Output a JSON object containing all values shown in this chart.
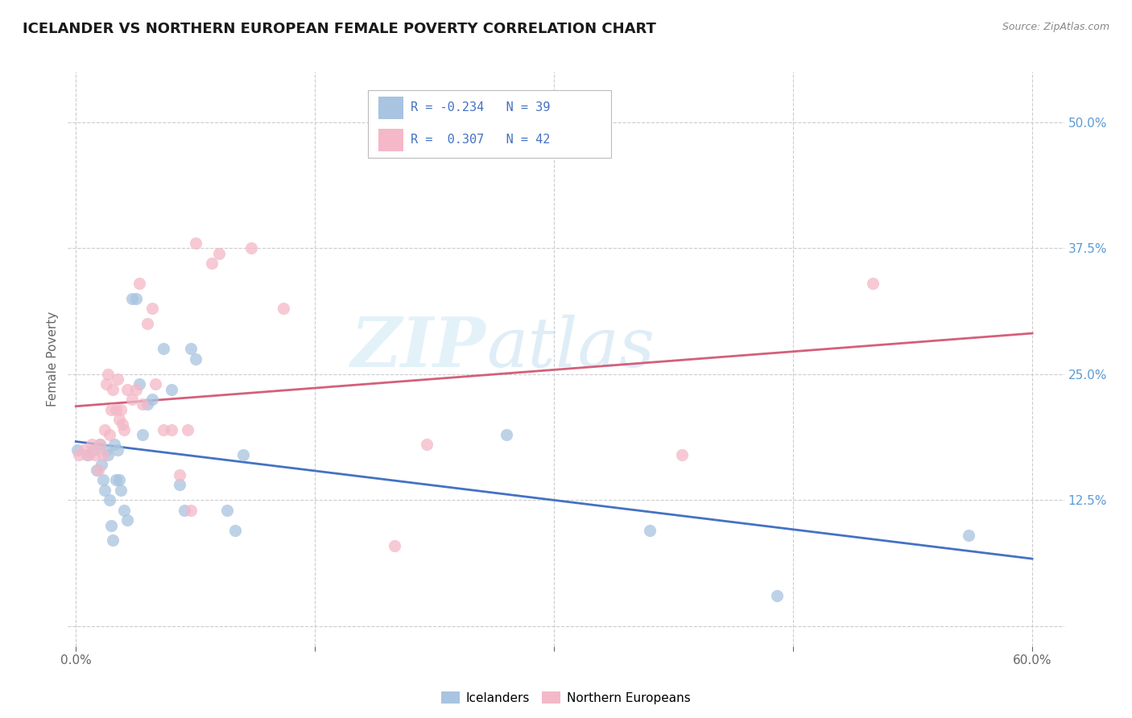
{
  "title": "ICELANDER VS NORTHERN EUROPEAN FEMALE POVERTY CORRELATION CHART",
  "source": "Source: ZipAtlas.com",
  "ylabel": "Female Poverty",
  "icelanders_color": "#a8c4e0",
  "northern_europeans_color": "#f4b8c8",
  "line_blue": "#4472c4",
  "line_pink": "#d4607a",
  "watermark_zip": "ZIP",
  "watermark_atlas": "atlas",
  "icelanders_x": [
    0.1,
    0.7,
    1.1,
    1.3,
    1.5,
    1.6,
    1.7,
    1.8,
    1.9,
    2.0,
    2.1,
    2.2,
    2.3,
    2.4,
    2.5,
    2.6,
    2.7,
    2.8,
    3.0,
    3.2,
    3.5,
    3.8,
    4.0,
    4.2,
    4.5,
    4.8,
    5.5,
    6.0,
    6.5,
    6.8,
    7.2,
    7.5,
    9.5,
    10.0,
    10.5,
    27.0,
    36.0,
    44.0,
    56.0
  ],
  "icelanders_y": [
    17.5,
    17.0,
    17.5,
    15.5,
    18.0,
    16.0,
    14.5,
    13.5,
    17.5,
    17.0,
    12.5,
    10.0,
    8.5,
    18.0,
    14.5,
    17.5,
    14.5,
    13.5,
    11.5,
    10.5,
    32.5,
    32.5,
    24.0,
    19.0,
    22.0,
    22.5,
    27.5,
    23.5,
    14.0,
    11.5,
    27.5,
    26.5,
    11.5,
    9.5,
    17.0,
    19.0,
    9.5,
    3.0,
    9.0
  ],
  "northern_europeans_x": [
    0.2,
    0.5,
    0.8,
    1.0,
    1.2,
    1.4,
    1.5,
    1.7,
    1.8,
    1.9,
    2.0,
    2.1,
    2.2,
    2.3,
    2.5,
    2.6,
    2.7,
    2.8,
    2.9,
    3.0,
    3.2,
    3.5,
    3.8,
    4.0,
    4.2,
    4.5,
    4.8,
    5.0,
    5.5,
    6.0,
    6.5,
    7.0,
    7.2,
    7.5,
    8.5,
    9.0,
    11.0,
    13.0,
    20.0,
    22.0,
    38.0,
    50.0
  ],
  "northern_europeans_y": [
    17.0,
    17.5,
    17.0,
    18.0,
    17.0,
    15.5,
    18.0,
    17.0,
    19.5,
    24.0,
    25.0,
    19.0,
    21.5,
    23.5,
    21.5,
    24.5,
    20.5,
    21.5,
    20.0,
    19.5,
    23.5,
    22.5,
    23.5,
    34.0,
    22.0,
    30.0,
    31.5,
    24.0,
    19.5,
    19.5,
    15.0,
    19.5,
    11.5,
    38.0,
    36.0,
    37.0,
    37.5,
    31.5,
    8.0,
    18.0,
    17.0,
    34.0
  ]
}
